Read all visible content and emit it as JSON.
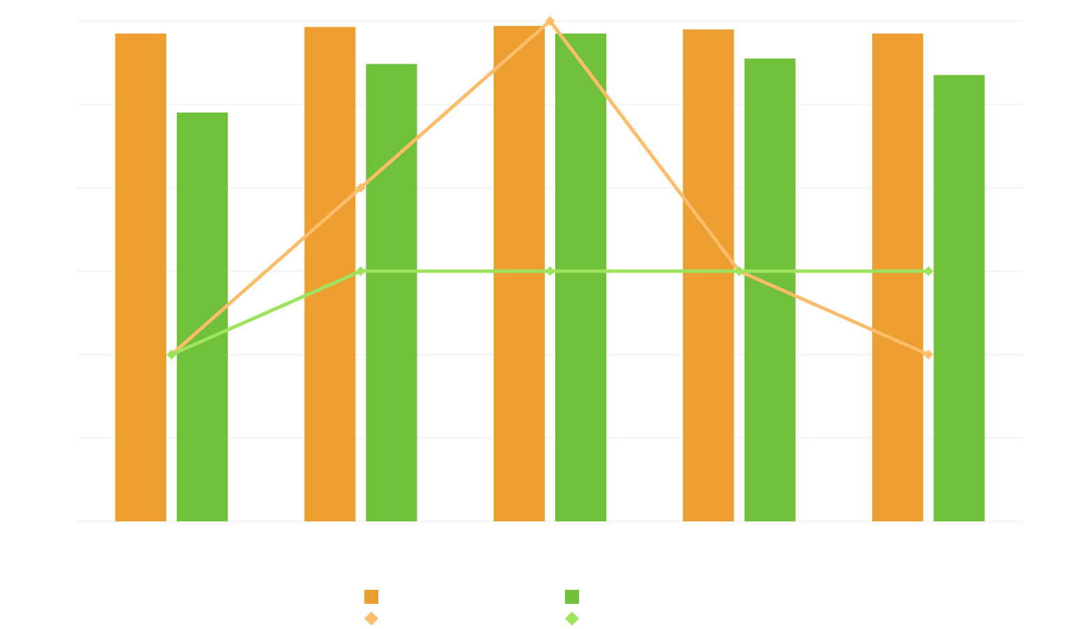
{
  "chart_data": {
    "type": "bar",
    "categories": [
      "",
      "",
      "",
      "",
      ""
    ],
    "bar_series": [
      {
        "values": [
          97.5,
          98.8,
          99.0,
          98.3,
          97.5
        ],
        "color": "#EC9F2F"
      },
      {
        "values": [
          81.7,
          91.4,
          97.5,
          92.5,
          89.2
        ],
        "color": "#70C039"
      }
    ],
    "line_series": [
      {
        "values": [
          2,
          4,
          6,
          3,
          2
        ],
        "color": "#FFBD6B",
        "marker": "diamond"
      },
      {
        "values": [
          2,
          3,
          3,
          3,
          3
        ],
        "color": "#9DE35D",
        "marker": "diamond"
      }
    ],
    "bar_axis": {
      "ylim": [
        0,
        100
      ],
      "gridlines": 6
    },
    "line_axis": {
      "ylim": [
        0,
        6
      ]
    },
    "title": "",
    "xlabel": "",
    "ylabel": "",
    "grid": true,
    "legend_position": "bottom-center",
    "gridline_color": "#EEEEEE"
  }
}
